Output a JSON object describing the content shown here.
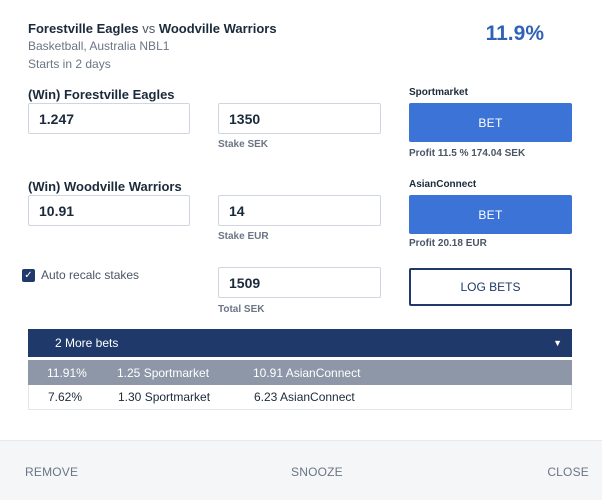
{
  "event": {
    "home": "Forestville Eagles",
    "vs": "vs",
    "away": "Woodville Warriors",
    "league": "Basketball, Australia NBL1",
    "starts": "Starts in 2 days",
    "percent": "11.9%"
  },
  "outcomes": [
    {
      "label": "(Win) Forestville Eagles",
      "odds": "1.247",
      "stake": "1350",
      "stake_caption": "Stake SEK",
      "bookmaker": "Sportmarket",
      "bet_label": "BET",
      "profit": "Profit 11.5 %   174.04 SEK"
    },
    {
      "label": "(Win) Woodville Warriors",
      "odds": "10.91",
      "stake": "14",
      "stake_caption": "Stake EUR",
      "bookmaker": "AsianConnect",
      "bet_label": "BET",
      "profit": "Profit 20.18 EUR"
    }
  ],
  "auto_recalc": {
    "label": "Auto recalc stakes",
    "checked": true
  },
  "total": {
    "value": "1509",
    "caption": "Total SEK"
  },
  "log_bets_label": "LOG BETS",
  "more_bets": {
    "label": "2 More bets",
    "icon": "caret-down-icon"
  },
  "bets": [
    {
      "pct": "11.91%",
      "odds1": "1.25 Sportmarket",
      "odds2": "10.91 AsianConnect",
      "active": true
    },
    {
      "pct": "7.62%",
      "odds1": "1.30 Sportmarket",
      "odds2": "6.23 AsianConnect",
      "active": false
    }
  ],
  "footer": {
    "remove": "REMOVE",
    "snooze": "SNOOZE",
    "close": "CLOSE"
  },
  "colors": {
    "accent": "#3c73d6",
    "navy": "#1f3a6a",
    "percent": "#2f63b8",
    "active_row": "#8e97a8"
  }
}
